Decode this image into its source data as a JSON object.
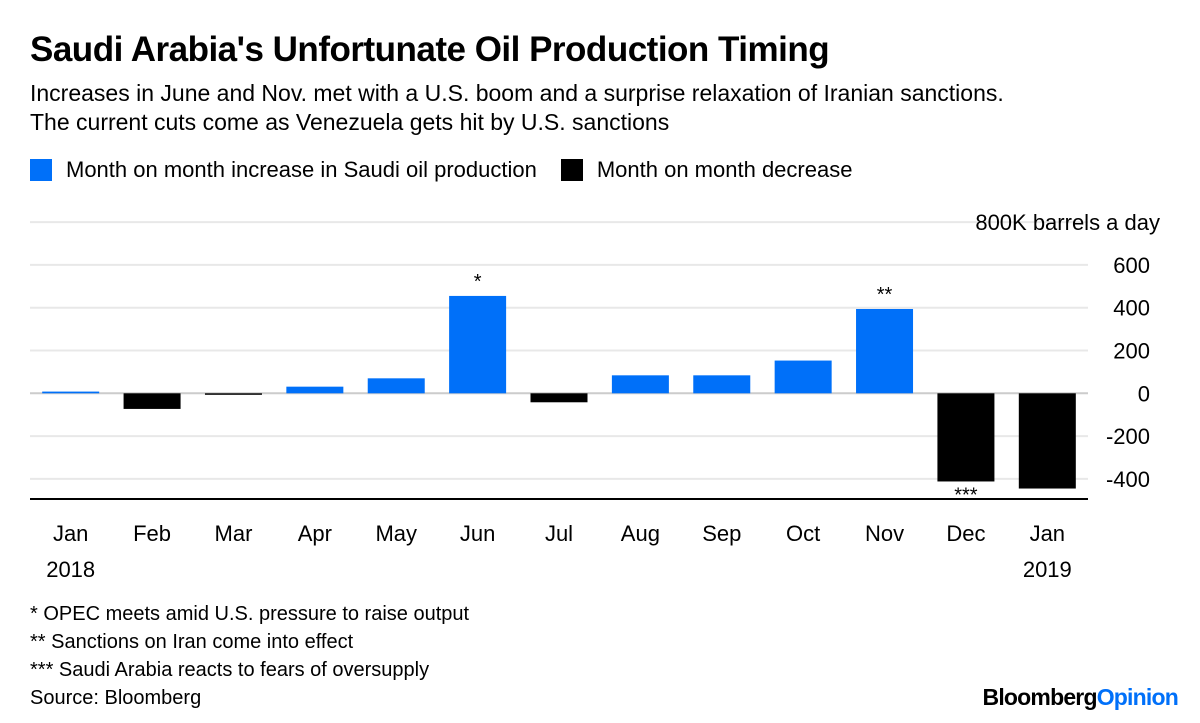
{
  "title": "Saudi Arabia's Unfortunate Oil Production Timing",
  "subtitle": [
    "Increases in June and Nov. met with a U.S. boom and a surprise relaxation of Iranian sanctions.",
    "The current cuts come as Venezuela gets hit by U.S. sanctions"
  ],
  "footnotes": [
    "* OPEC meets amid U.S. pressure to raise output",
    "** Sanctions on Iran come into effect",
    "*** Saudi Arabia reacts to fears of oversupply",
    "Source: Bloomberg"
  ],
  "logo": {
    "part1": "Bloomberg",
    "part2": "Opinion"
  },
  "colors": {
    "increase": "#0070f9",
    "decrease": "#000000",
    "grid": "#e8e8e8"
  },
  "chart_data": {
    "type": "bar",
    "title": "Saudi Arabia's Unfortunate Oil Production Timing",
    "ylabel": "800K barrels a day",
    "categories": [
      "Jan",
      "Feb",
      "Mar",
      "Apr",
      "May",
      "Jun",
      "Jul",
      "Aug",
      "Sep",
      "Oct",
      "Nov",
      "Dec",
      "Jan"
    ],
    "year_labels": {
      "0": "2018",
      "12": "2019"
    },
    "values": [
      8,
      -73,
      -5,
      31,
      70,
      455,
      -42,
      84,
      84,
      153,
      394,
      -412,
      -445
    ],
    "annotations": {
      "5": "*",
      "10": "**",
      "11": "***"
    },
    "legend": [
      {
        "name": "Month on month increase in Saudi oil production",
        "color": "#0070f9"
      },
      {
        "name": "Month on month decrease",
        "color": "#000000"
      }
    ],
    "legend_placement": "top-left",
    "yticks": [
      600,
      400,
      200,
      0,
      -200,
      -400
    ],
    "top_tick_label": "800K barrels a day",
    "ylim": [
      -495,
      800
    ],
    "grid": true
  }
}
